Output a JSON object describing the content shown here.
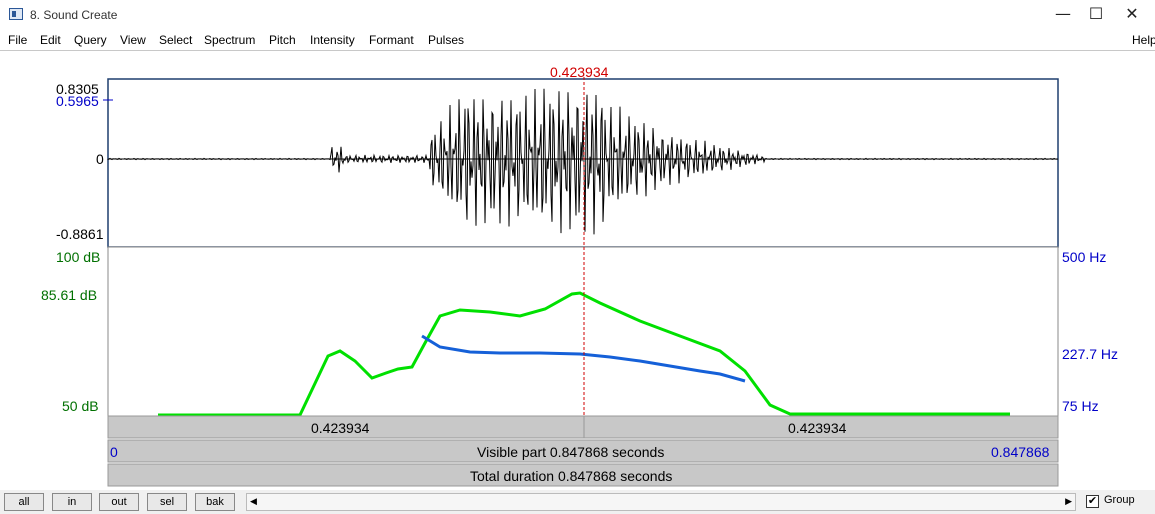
{
  "window": {
    "title": "8. Sound Create",
    "min": "—",
    "max": "☐",
    "close": "✕"
  },
  "menu": {
    "items": [
      "File",
      "Edit",
      "Query",
      "View",
      "Select",
      "Spectrum",
      "Pitch",
      "Intensity",
      "Formant",
      "Pulses"
    ],
    "help": "Help"
  },
  "cursor": {
    "time": "0.423934"
  },
  "waveform": {
    "max": "0.8305",
    "sel": "0.5965",
    "zero": "0",
    "min": "-0.8861"
  },
  "analysis": {
    "db_top": "100 dB",
    "db_mid": "85.61 dB",
    "db_bottom": "50 dB",
    "hz_top": "500 Hz",
    "hz_mid": "227.7 Hz",
    "hz_bottom": "75 Hz"
  },
  "timebar": {
    "left": "0.423934",
    "right": "0.423934",
    "start": "0",
    "end": "0.847868",
    "visible": "Visible part 0.847868 seconds",
    "total": "Total duration 0.847868 seconds"
  },
  "buttons": {
    "all": "all",
    "in": "in",
    "out": "out",
    "sel": "sel",
    "bak": "bak"
  },
  "group": {
    "label": "Group",
    "checked": "✔"
  },
  "colors": {
    "intensity": "#00e000",
    "pitch": "#1560d8",
    "cursor": "#d00000",
    "db_label": "#007000",
    "hz_label": "#0000c8"
  }
}
